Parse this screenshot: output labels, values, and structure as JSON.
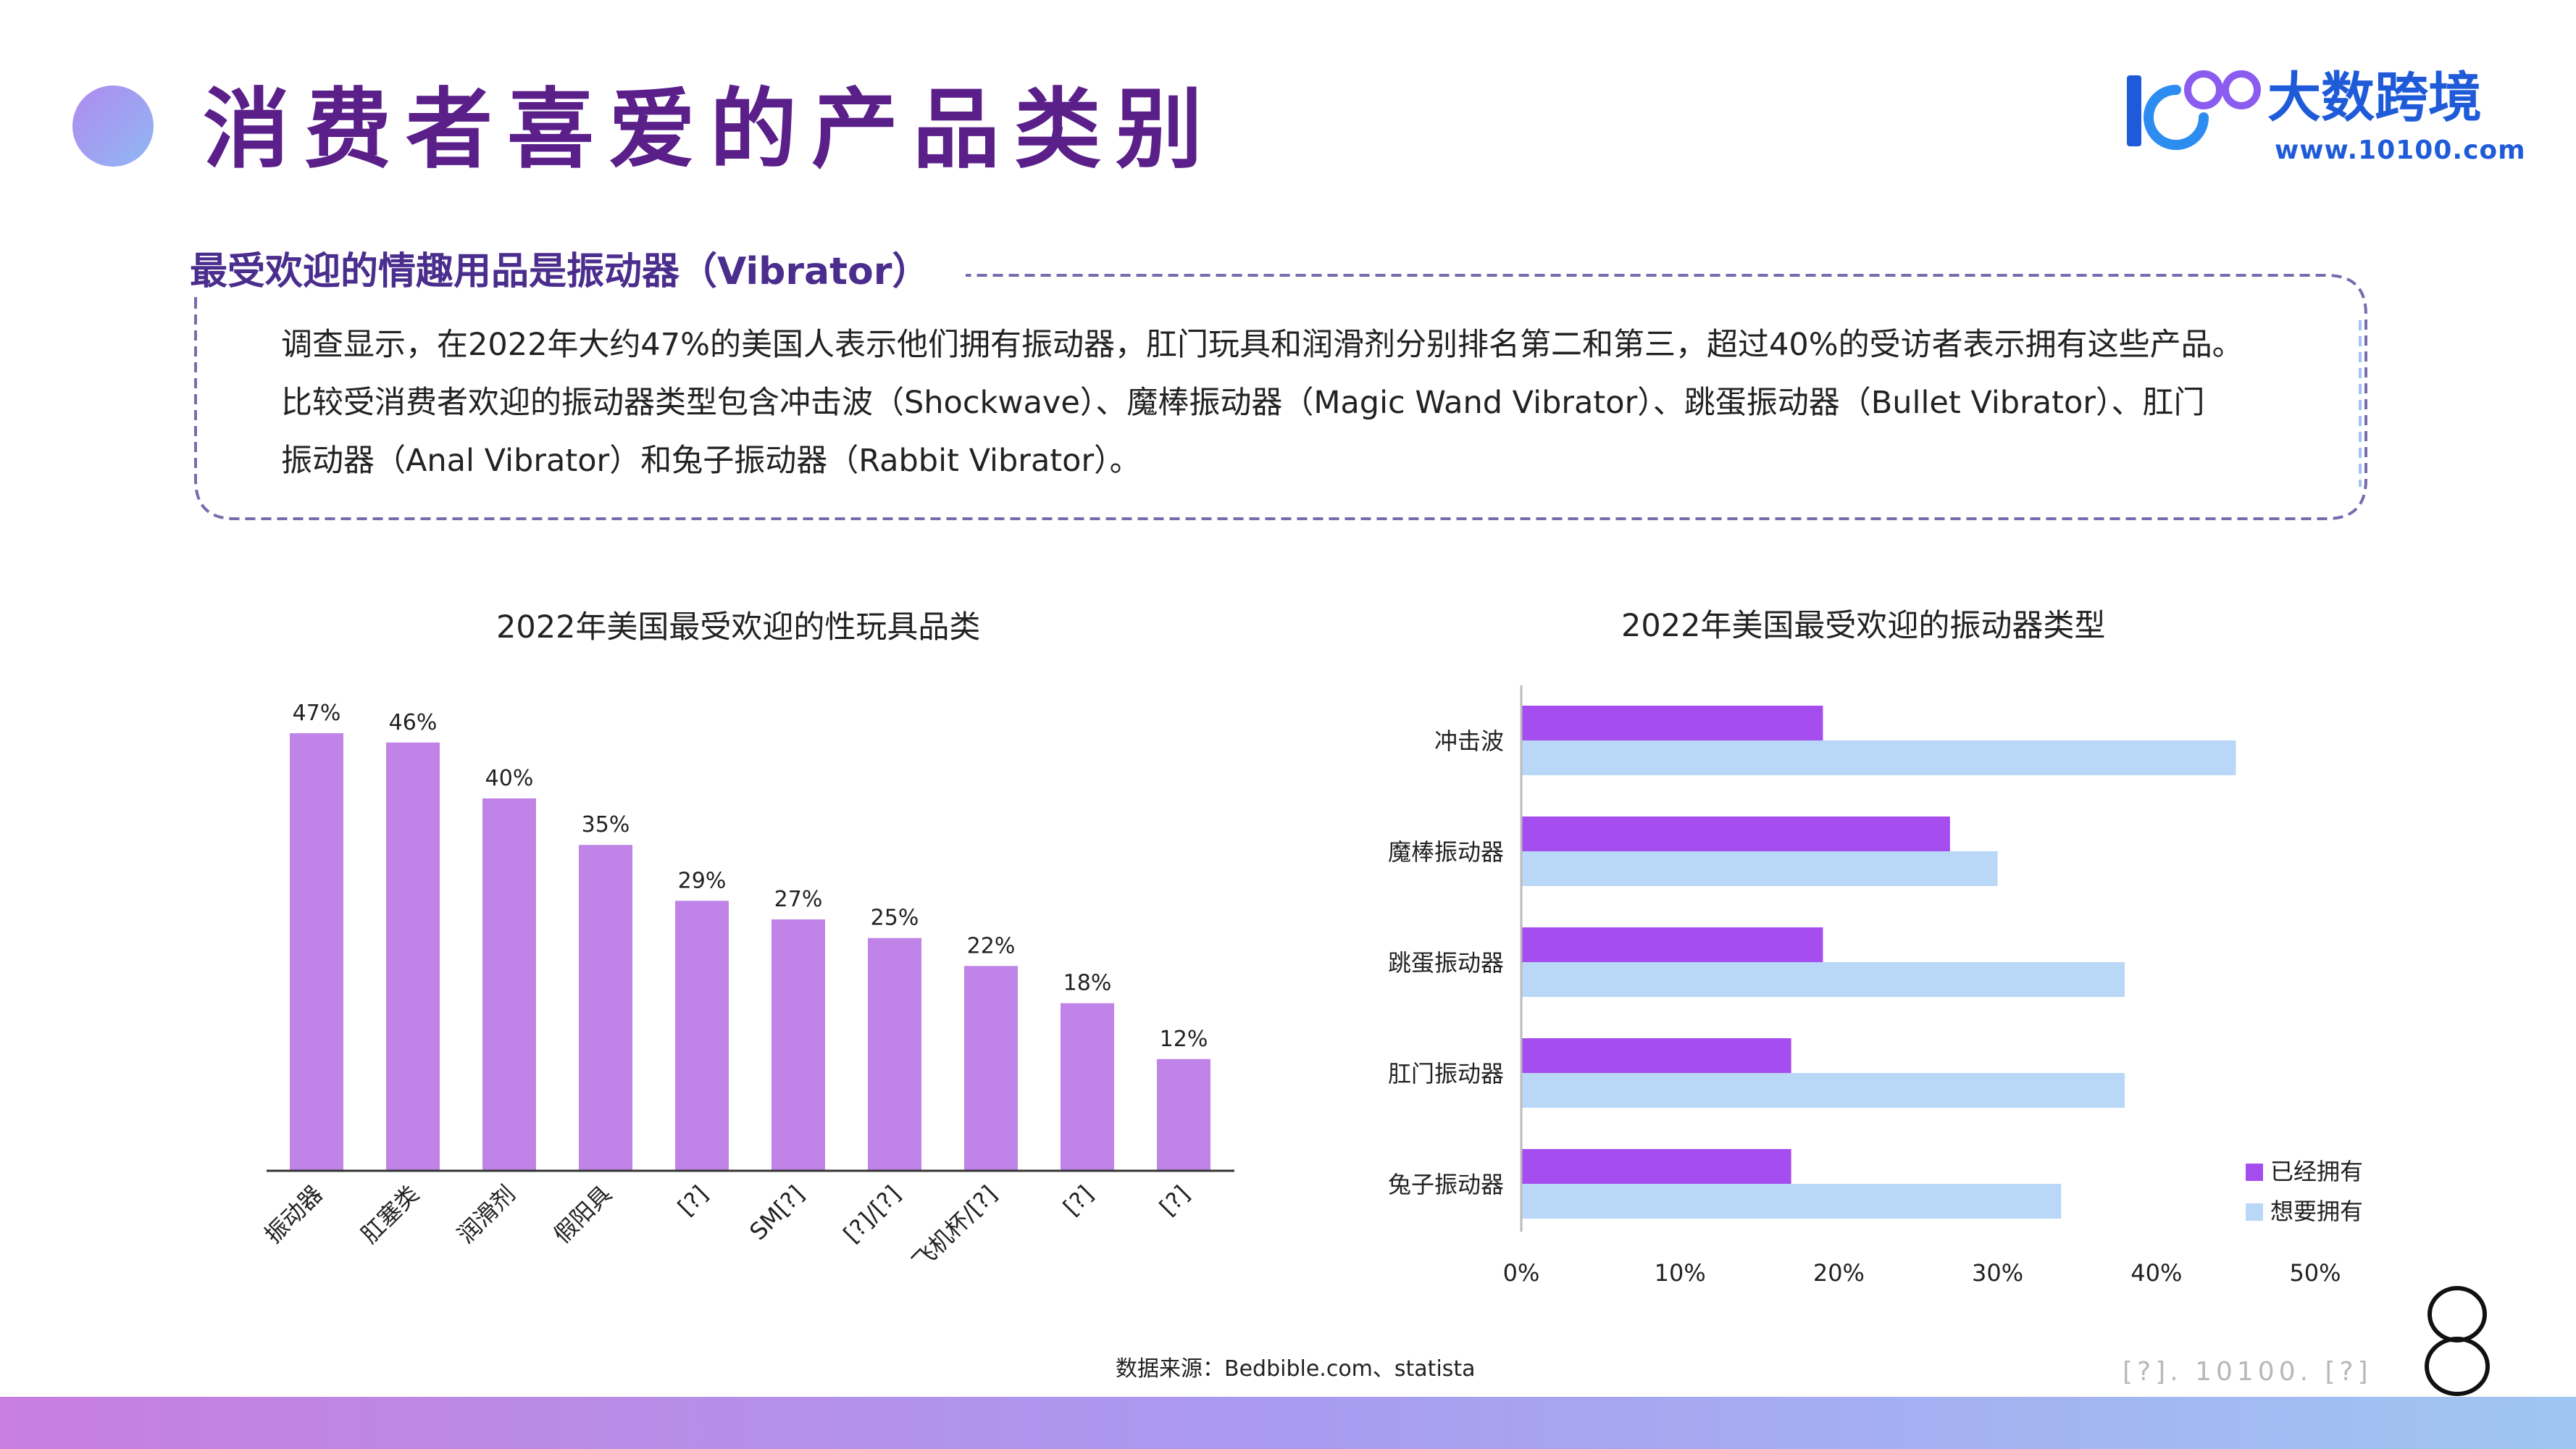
{
  "page": {
    "title": "消费者喜爱的产品类别"
  },
  "logo": {
    "mark": "100",
    "name": "大数跨境",
    "url": "www.10100.com"
  },
  "intro": {
    "heading": "最受欢迎的情趣用品是振动器（Vibrator）",
    "lines": [
      "调查显示，在2022年大约47%的美国人表示他们拥有振动器，肛门玩具和润滑剂分别排名第二和第三，超过40%的受访者表示拥有这些产品。",
      "比较受消费者欢迎的振动器类型包含冲击波（Shockwave）、魔棒振动器（Magic Wand Vibrator）、跳蛋振动器（Bullet Vibrator）、肛门",
      "振动器（Anal Vibrator）和兔子振动器（Rabbit Vibrator）。"
    ]
  },
  "colors": {
    "accent": "#5b1f8a",
    "bar_purple": "#c084e8",
    "owned": "#a64df0",
    "want": "#b9d7f7"
  },
  "chart_data": [
    {
      "type": "bar",
      "title": "2022年美国最受欢迎的性玩具品类",
      "categories": [
        "振动器",
        "肛塞类",
        "润滑剂",
        "假阳具",
        "[?]",
        "SM[?]",
        "[?]/[?]",
        "飞机杯/[?]",
        "[?]",
        "[?]"
      ],
      "values": [
        47,
        46,
        40,
        35,
        29,
        27,
        25,
        22,
        18,
        12
      ],
      "value_labels": [
        "47%",
        "46%",
        "40%",
        "35%",
        "29%",
        "27%",
        "25%",
        "22%",
        "18%",
        "12%"
      ],
      "ylim": [
        0,
        50
      ],
      "grid": false,
      "color": "#c084e8"
    },
    {
      "type": "bar",
      "orientation": "horizontal",
      "title": "2022年美国最受欢迎的振动器类型",
      "categories": [
        "冲击波",
        "魔棒振动器",
        "跳蛋振动器",
        "肛门振动器",
        "兔子振动器"
      ],
      "series": [
        {
          "name": "已经拥有",
          "values": [
            19,
            27,
            19,
            17,
            17
          ],
          "color": "#a64df0"
        },
        {
          "name": "想要拥有",
          "values": [
            45,
            30,
            38,
            38,
            34
          ],
          "color": "#b9d7f7"
        }
      ],
      "xlim": [
        0,
        50
      ],
      "x_ticks": [
        "0%",
        "10%",
        "20%",
        "30%",
        "40%",
        "50%"
      ],
      "grid": false,
      "legend": "bottom-right"
    }
  ],
  "source": "数据来源：Bedbible.com、statista",
  "watermark": "[?]. 10100. [?]",
  "page_number": "8"
}
